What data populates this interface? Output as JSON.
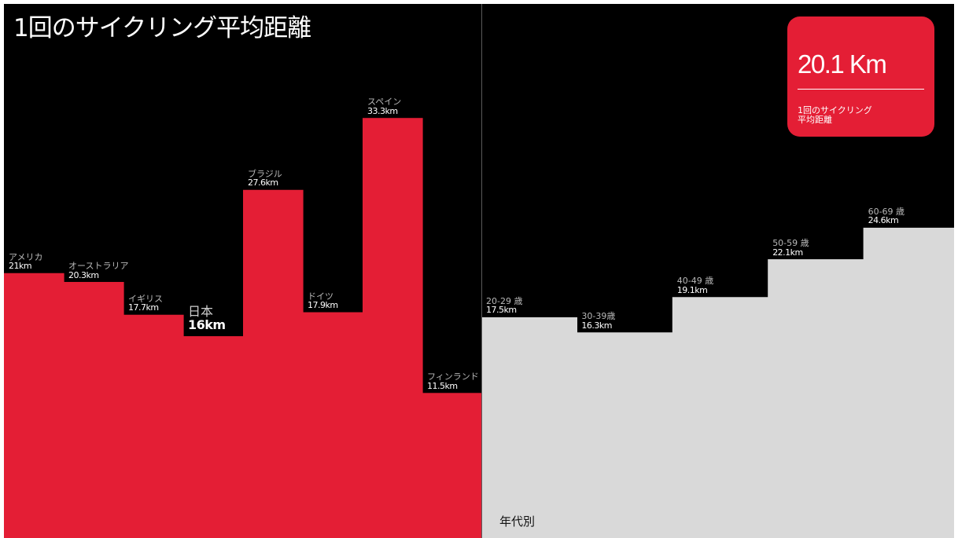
{
  "title": "1回のサイクリング平均距離",
  "callout": {
    "value": "20.1 Km",
    "caption": "1回のサイクリング\n平均距離"
  },
  "age_footer": "年代別",
  "colors": {
    "background": "#000000",
    "country_fill": "#e41e35",
    "age_fill": "#d9d9d9",
    "callout_fill": "#e41e35"
  },
  "chart_data": [
    {
      "type": "bar",
      "categories": [
        "アメリカ",
        "オーストラリア",
        "イギリス",
        "日本",
        "ブラジル",
        "ドイツ",
        "スペイン",
        "フィンランド"
      ],
      "values": [
        21,
        20.3,
        17.7,
        16,
        27.6,
        17.9,
        33.3,
        11.5
      ],
      "value_labels": [
        "21km",
        "20.3km",
        "17.7km",
        "16km",
        "27.6km",
        "17.9km",
        "33.3km",
        "11.5km"
      ],
      "highlight": "日本",
      "unit": "km"
    },
    {
      "type": "bar",
      "categories": [
        "20-29 歳",
        "30-39歳",
        "40-49 歳",
        "50-59 歳",
        "60-69 歳"
      ],
      "values": [
        17.5,
        16.3,
        19.1,
        22.1,
        24.6
      ],
      "value_labels": [
        "17.5km",
        "16.3km",
        "19.1km",
        "22.1km",
        "24.6km"
      ],
      "unit": "km"
    }
  ]
}
